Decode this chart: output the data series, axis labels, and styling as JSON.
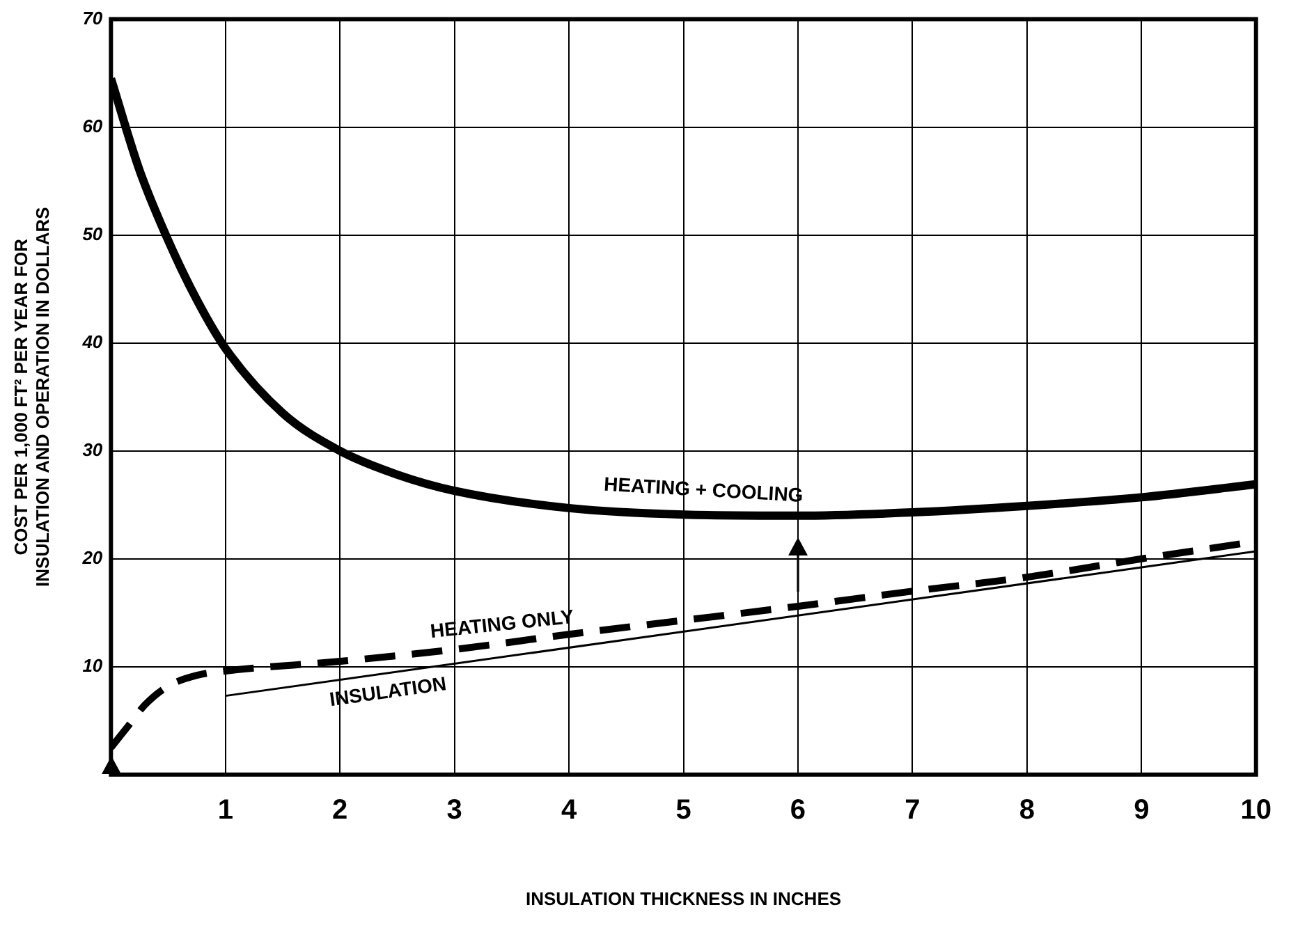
{
  "chart_data": {
    "type": "line",
    "xlabel": "INSULATION THICKNESS IN INCHES",
    "ylabel": [
      "COST PER 1,000 FT² PER YEAR FOR",
      "INSULATION AND OPERATION IN DOLLARS"
    ],
    "xlim": [
      0,
      10
    ],
    "xticks": [
      1,
      2,
      3,
      4,
      5,
      6,
      7,
      8,
      9,
      10
    ],
    "ylim": [
      0,
      70
    ],
    "yticks": [
      10,
      20,
      30,
      40,
      50,
      60,
      70
    ],
    "grid": true,
    "legend": false,
    "marker": "none",
    "series": [
      {
        "name": "HEATING + COOLING",
        "color": "#000000",
        "line_style": "solid",
        "x": [
          0,
          0.25,
          0.5,
          0.75,
          1,
          1.5,
          2,
          2.5,
          3,
          4,
          5,
          6,
          7,
          8,
          9,
          10
        ],
        "values": [
          64.5,
          56,
          49.5,
          44,
          39.5,
          33.5,
          30,
          27.8,
          26.3,
          24.7,
          24.1,
          24,
          24.3,
          24.9,
          25.7,
          26.9
        ]
      },
      {
        "name": "HEATING ONLY",
        "color": "#000000",
        "line_style": "dashed",
        "x": [
          0,
          0.15,
          0.3,
          0.5,
          0.75,
          1,
          2,
          3,
          4,
          5,
          6,
          7,
          8,
          9,
          10
        ],
        "values": [
          2.5,
          4.5,
          6.5,
          8.2,
          9.2,
          9.6,
          10.5,
          11.6,
          13,
          14.3,
          15.6,
          17,
          18.3,
          20,
          21.6
        ]
      },
      {
        "name": "INSULATION",
        "color": "#000000",
        "line_style": "solid",
        "x": [
          1,
          10
        ],
        "values": [
          7.3,
          20.7
        ]
      }
    ]
  }
}
